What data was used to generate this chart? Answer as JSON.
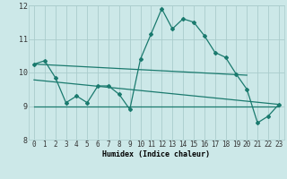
{
  "xlabel": "Humidex (Indice chaleur)",
  "xlim": [
    -0.5,
    23.5
  ],
  "ylim": [
    8,
    12
  ],
  "yticks": [
    8,
    9,
    10,
    11,
    12
  ],
  "xticks": [
    0,
    1,
    2,
    3,
    4,
    5,
    6,
    7,
    8,
    9,
    10,
    11,
    12,
    13,
    14,
    15,
    16,
    17,
    18,
    19,
    20,
    21,
    22,
    23
  ],
  "bg_color": "#cce8e8",
  "grid_color": "#aacccc",
  "line_color": "#1a7a6e",
  "line1_x": [
    0,
    1,
    2,
    3,
    4,
    5,
    6,
    7,
    8,
    9,
    10,
    11,
    12,
    13,
    14,
    15,
    16,
    17,
    18,
    19,
    20,
    21,
    22,
    23
  ],
  "line1_y": [
    10.25,
    10.35,
    9.85,
    9.1,
    9.3,
    9.1,
    9.6,
    9.6,
    9.35,
    8.9,
    10.4,
    11.15,
    11.9,
    11.3,
    11.6,
    11.5,
    11.1,
    10.6,
    10.45,
    9.95,
    9.5,
    8.5,
    8.7,
    9.05
  ],
  "line2_x": [
    0,
    20
  ],
  "line2_y": [
    10.25,
    9.92
  ],
  "line3_x": [
    0,
    23
  ],
  "line3_y": [
    9.78,
    9.05
  ],
  "line4_x": [
    0,
    23
  ],
  "line4_y": [
    9.0,
    9.0
  ],
  "tick_fontsize": 5.5,
  "xlabel_fontsize": 6.0
}
